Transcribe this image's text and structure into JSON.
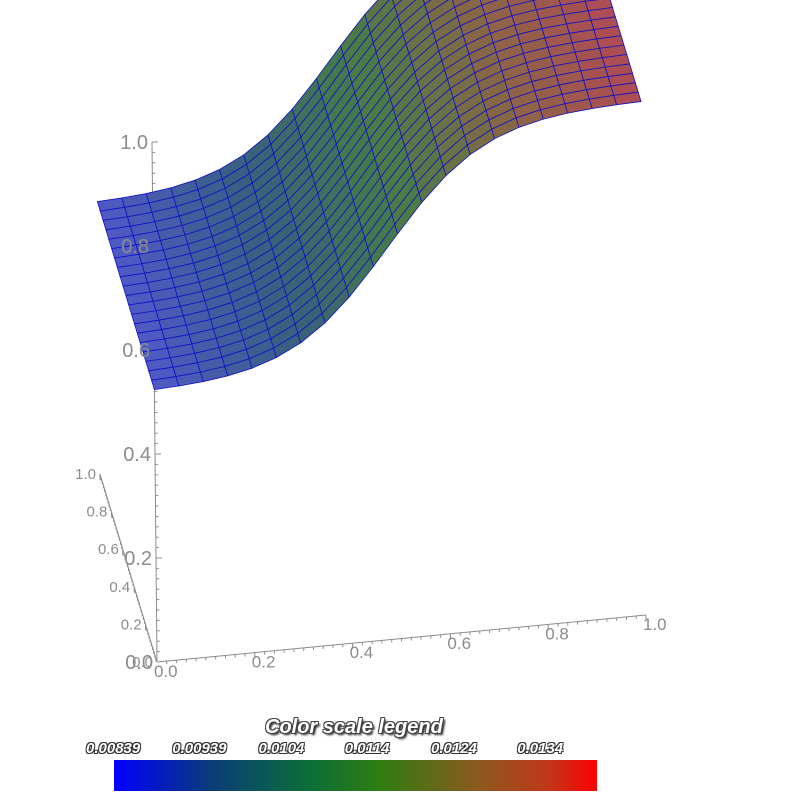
{
  "chart_data": {
    "type": "surface3d",
    "z_axis_ticks": [
      "0.0",
      "0.2",
      "0.4",
      "0.6",
      "0.8",
      "1.0"
    ],
    "y_axis_ticks": [
      "0.0",
      "0.2",
      "0.4",
      "0.6",
      "0.8",
      "1.0"
    ],
    "x_axis_ticks": [
      "0.0",
      "0.2",
      "0.4",
      "0.6",
      "0.8",
      "1.0"
    ],
    "x_range": [
      0,
      1
    ],
    "y_range": [
      0,
      1
    ],
    "z_range": [
      0,
      1
    ],
    "grid_resolution": 20,
    "surface_shape": "sigmoid step along x, rising from about 0.5 at x=0 to about 1.0 at x=1",
    "colorscale": {
      "title": "Color scale legend",
      "tick_labels": [
        "0.00839",
        "0.00939",
        "0.0104",
        "0.0114",
        "0.0124",
        "0.0134"
      ],
      "min": 0.00839,
      "max": 0.0134,
      "colors": [
        "#0000ff",
        "#0b6e3a",
        "#2e7d10",
        "#c0371a",
        "#ff0000"
      ]
    },
    "wireframe_color": "#1010c8"
  }
}
